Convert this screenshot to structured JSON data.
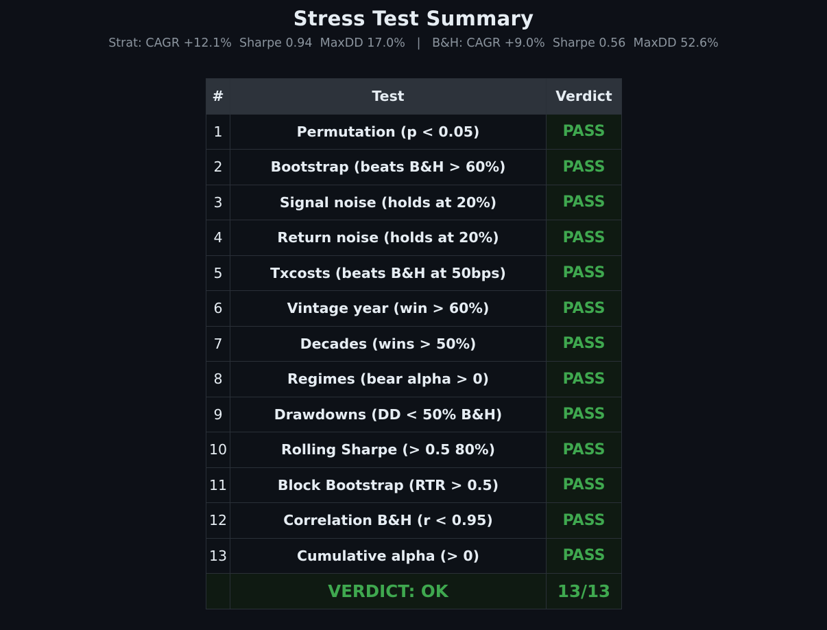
{
  "chart_data": {
    "type": "table",
    "title": "Stress Test Summary",
    "subtitle": "Strat: CAGR +12.1%  Sharpe 0.94  MaxDD 17.0%   |   B&H: CAGR +9.0%  Sharpe 0.56  MaxDD 52.6%",
    "columns": [
      "#",
      "Test",
      "Verdict"
    ],
    "rows": [
      {
        "num": "1",
        "test": "Permutation (p < 0.05)",
        "verdict": "PASS"
      },
      {
        "num": "2",
        "test": "Bootstrap (beats B&H > 60%)",
        "verdict": "PASS"
      },
      {
        "num": "3",
        "test": "Signal noise (holds at 20%)",
        "verdict": "PASS"
      },
      {
        "num": "4",
        "test": "Return noise (holds at 20%)",
        "verdict": "PASS"
      },
      {
        "num": "5",
        "test": "Txcosts (beats B&H at 50bps)",
        "verdict": "PASS"
      },
      {
        "num": "6",
        "test": "Vintage year (win > 60%)",
        "verdict": "PASS"
      },
      {
        "num": "7",
        "test": "Decades (wins > 50%)",
        "verdict": "PASS"
      },
      {
        "num": "8",
        "test": "Regimes (bear alpha > 0)",
        "verdict": "PASS"
      },
      {
        "num": "9",
        "test": "Drawdowns (DD < 50% B&H)",
        "verdict": "PASS"
      },
      {
        "num": "10",
        "test": "Rolling Sharpe (> 0.5 80%)",
        "verdict": "PASS"
      },
      {
        "num": "11",
        "test": "Block Bootstrap (RTR > 0.5)",
        "verdict": "PASS"
      },
      {
        "num": "12",
        "test": "Correlation B&H (r < 0.95)",
        "verdict": "PASS"
      },
      {
        "num": "13",
        "test": "Cumulative alpha (> 0)",
        "verdict": "PASS"
      }
    ],
    "footer": {
      "num": "",
      "label": "VERDICT: OK",
      "score": "13/13"
    }
  },
  "colors": {
    "pass": "#3fa84f",
    "fail": "#e5534b",
    "text": "#e6edf3",
    "muted": "#8b949e"
  }
}
